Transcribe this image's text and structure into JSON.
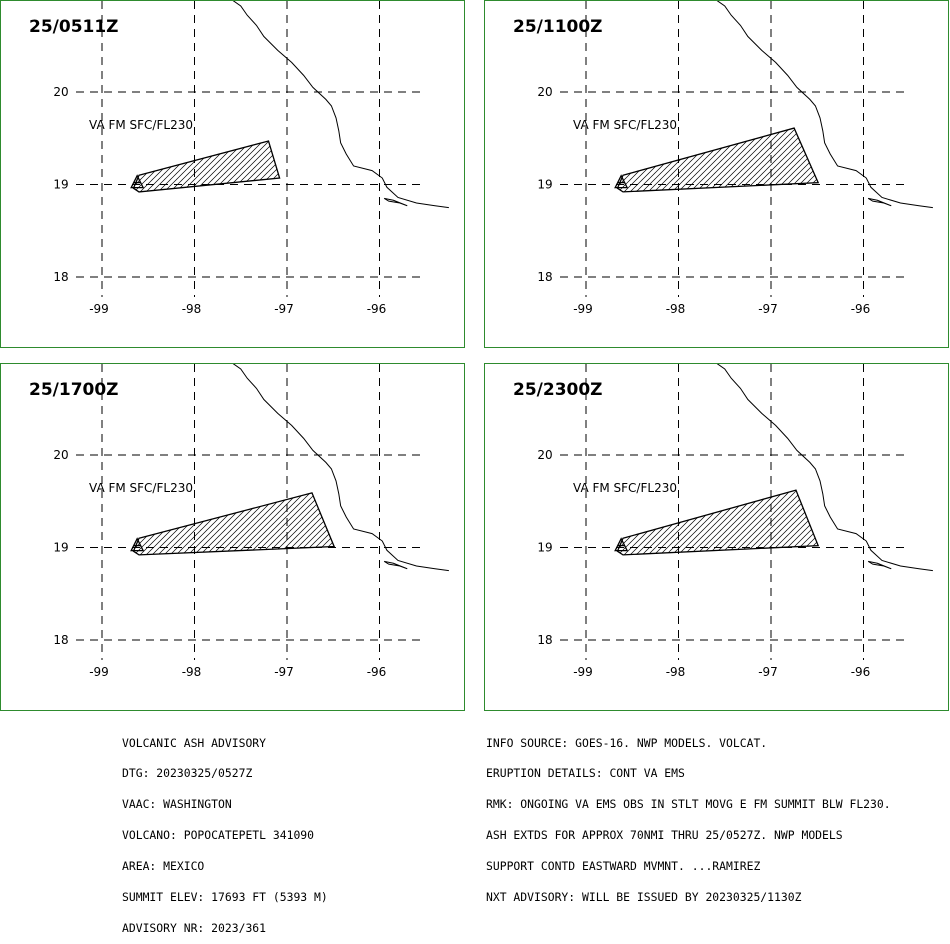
{
  "panels": [
    {
      "label": "25/0511Z",
      "va_label": "VA FM SFC/FL230",
      "polygon_lonlat": [
        [
          -98.6,
          19.1
        ],
        [
          -97.2,
          19.47
        ],
        [
          -97.08,
          19.07
        ],
        [
          -98.6,
          18.92
        ],
        [
          -98.66,
          18.96
        ],
        [
          -98.6,
          19.1
        ]
      ]
    },
    {
      "label": "25/1100Z",
      "va_label": "VA FM SFC/FL230",
      "polygon_lonlat": [
        [
          -98.6,
          19.1
        ],
        [
          -96.75,
          19.61
        ],
        [
          -96.49,
          19.02
        ],
        [
          -98.6,
          18.92
        ],
        [
          -98.66,
          18.96
        ],
        [
          -98.6,
          19.1
        ]
      ]
    },
    {
      "label": "25/1700Z",
      "va_label": "VA FM SFC/FL230",
      "polygon_lonlat": [
        [
          -98.6,
          19.1
        ],
        [
          -96.73,
          19.59
        ],
        [
          -96.49,
          19.01
        ],
        [
          -98.6,
          18.92
        ],
        [
          -98.66,
          18.96
        ],
        [
          -98.6,
          19.1
        ]
      ]
    },
    {
      "label": "25/2300Z",
      "va_label": "VA FM SFC/FL230",
      "polygon_lonlat": [
        [
          -98.6,
          19.1
        ],
        [
          -96.73,
          19.62
        ],
        [
          -96.49,
          19.02
        ],
        [
          -98.6,
          18.92
        ],
        [
          -98.66,
          18.96
        ],
        [
          -98.6,
          19.1
        ]
      ]
    }
  ],
  "axes": {
    "lon_ticks": [
      "-99",
      "-98",
      "-97",
      "-96"
    ],
    "lon_values": [
      -99,
      -98,
      -97,
      -96
    ],
    "lat_ticks": [
      "20",
      "19",
      "18"
    ],
    "lat_values": [
      20,
      19,
      18
    ]
  },
  "volcano": {
    "name": "POPOCATEPETL",
    "lon": -98.62,
    "lat": 19.02
  },
  "advisory_left": [
    "VOLCANIC ASH ADVISORY",
    "DTG: 20230325/0527Z",
    "VAAC: WASHINGTON",
    "VOLCANO: POPOCATEPETL 341090",
    "AREA: MEXICO",
    "SUMMIT ELEV: 17693 FT (5393 M)",
    "ADVISORY NR: 2023/361"
  ],
  "advisory_right": [
    "INFO SOURCE: GOES-16. NWP MODELS. VOLCAT.",
    "ERUPTION DETAILS: CONT VA EMS",
    "RMK: ONGOING VA EMS OBS IN STLT MOVG E FM SUMMIT BLW FL230.",
    "ASH EXTDS FOR APPROX 70NMI THRU 25/0527Z. NWP MODELS",
    "SUPPORT CONTD EASTWARD MVMNT. ...RAMIREZ",
    "NXT ADVISORY: WILL BE ISSUED BY 20230325/1130Z"
  ],
  "colors": {
    "border": "#2e8b2e",
    "lines": "#000000"
  }
}
